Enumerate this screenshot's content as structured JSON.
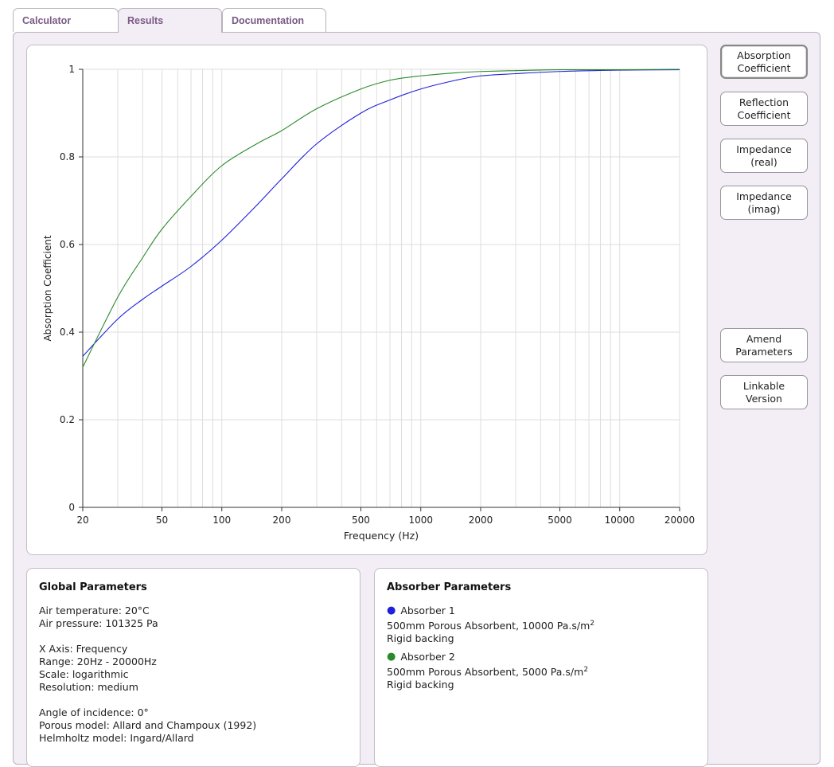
{
  "tabs": [
    {
      "label": "Calculator"
    },
    {
      "label": "Results"
    },
    {
      "label": "Documentation"
    }
  ],
  "active_tab": "Results",
  "side_buttons": {
    "absorption": [
      "Absorption",
      "Coefficient"
    ],
    "reflection": [
      "Reflection",
      "Coefficient"
    ],
    "imp_real": [
      "Impedance",
      "(real)"
    ],
    "imp_imag": [
      "Impedance",
      "(imag)"
    ],
    "amend": [
      "Amend",
      "Parameters"
    ],
    "linkable": [
      "Linkable",
      "Version"
    ]
  },
  "global_params": {
    "title": "Global Parameters",
    "air_temperature": "Air temperature: 20°C",
    "air_pressure": "Air pressure: 101325 Pa",
    "x_axis": "X Axis: Frequency",
    "range": "Range: 20Hz - 20000Hz",
    "scale": "Scale: logarithmic",
    "resolution": "Resolution: medium",
    "angle": "Angle of incidence: 0°",
    "porous_model": "Porous model: Allard and Champoux (1992)",
    "helmholtz_model": "Helmholtz model: Ingard/Allard"
  },
  "absorber_params": {
    "title": "Absorber Parameters",
    "absorbers": [
      {
        "name": "Absorber 1",
        "color": "#1f1fdc",
        "description": "500mm Porous Absorbent, 10000 Pa.s/m",
        "superscript": "2",
        "backing": "Rigid backing"
      },
      {
        "name": "Absorber 2",
        "color": "#2a8a2a",
        "description": "500mm Porous Absorbent, 5000 Pa.s/m",
        "superscript": "2",
        "backing": "Rigid backing"
      }
    ]
  },
  "chart_data": {
    "type": "line",
    "xlabel": "Frequency (Hz)",
    "ylabel": "Absorption Coefficient",
    "x_scale": "log",
    "xlim": [
      20,
      20000
    ],
    "ylim": [
      0,
      1
    ],
    "x_ticks": [
      20,
      50,
      100,
      200,
      500,
      1000,
      2000,
      5000,
      10000,
      20000
    ],
    "x_tick_labels": [
      "20",
      "50",
      "100",
      "200",
      "500",
      "1000",
      "2000",
      "5000",
      "10000",
      "20000"
    ],
    "y_ticks": [
      0,
      0.2,
      0.4,
      0.6,
      0.8,
      1
    ],
    "y_tick_labels": [
      "0",
      "0.2",
      "0.4",
      "0.6",
      "0.8",
      "1"
    ],
    "grid": true,
    "series": [
      {
        "color": "#1f1fdc",
        "x": [
          20,
          30,
          40,
          50,
          70,
          100,
          150,
          200,
          300,
          500,
          700,
          1000,
          1500,
          2000,
          3000,
          5000,
          10000,
          20000
        ],
        "y": [
          0.345,
          0.43,
          0.475,
          0.505,
          0.55,
          0.61,
          0.69,
          0.75,
          0.83,
          0.9,
          0.93,
          0.955,
          0.975,
          0.985,
          0.99,
          0.995,
          0.998,
          0.999
        ]
      },
      {
        "color": "#2a8a2a",
        "x": [
          20,
          30,
          40,
          50,
          70,
          100,
          150,
          200,
          300,
          500,
          700,
          1000,
          1500,
          2000,
          3000,
          5000,
          10000,
          20000
        ],
        "y": [
          0.32,
          0.48,
          0.57,
          0.635,
          0.71,
          0.78,
          0.83,
          0.86,
          0.91,
          0.955,
          0.975,
          0.985,
          0.992,
          0.995,
          0.997,
          0.999,
          0.999,
          1.0
        ]
      }
    ]
  }
}
